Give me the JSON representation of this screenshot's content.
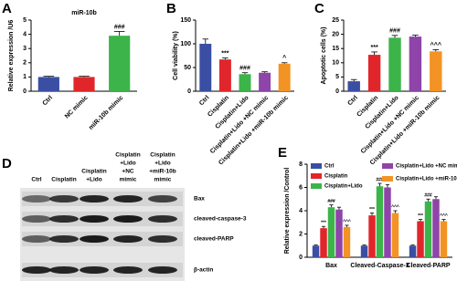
{
  "chart_data": [
    {
      "type": "bar",
      "panel": "A",
      "title": "miR-10b",
      "y_label": "Relative expression /U6",
      "categories": [
        "Ctrl",
        "NC mimic",
        "miR-10b mimic"
      ],
      "values": [
        1,
        1,
        3.9
      ],
      "errors": [
        0.05,
        0.05,
        0.3
      ],
      "colors": [
        "#3a4fa3",
        "#e0262b",
        "#3cb44a"
      ],
      "annotations": [
        null,
        null,
        "###"
      ],
      "ylim": [
        0,
        5
      ],
      "yticks": [
        0,
        1,
        2,
        3,
        4,
        5
      ]
    },
    {
      "type": "bar",
      "panel": "B",
      "y_label": "Cell viability (%)",
      "categories": [
        "Ctrl",
        "Cisplatin",
        "Cisplatin+Lido",
        "Cisplatin+Lido +NC mimic",
        "Cisplatin+Lido +miR-10b mimic"
      ],
      "values": [
        100,
        67,
        36,
        39,
        58
      ],
      "errors": [
        10,
        3,
        3,
        2,
        2
      ],
      "colors": [
        "#3a4fa3",
        "#e0262b",
        "#3cb44a",
        "#8e44a8",
        "#f39325"
      ],
      "annotations": [
        null,
        "***",
        "###",
        null,
        "^"
      ],
      "ylim": [
        0,
        150
      ],
      "yticks": [
        0,
        50,
        100,
        150
      ]
    },
    {
      "type": "bar",
      "panel": "C",
      "y_label": "Apoptotic cells (%)",
      "categories": [
        "Ctrl",
        "Cisplatin",
        "Cisplatin+Lido",
        "Cisplatin+Lido +NC mimic",
        "Cisplatin+Lido +miR-10b mimic"
      ],
      "values": [
        3.5,
        12.8,
        18.8,
        19.2,
        14
      ],
      "errors": [
        0.6,
        1,
        0.8,
        0.5,
        0.6
      ],
      "colors": [
        "#3a4fa3",
        "#e0262b",
        "#3cb44a",
        "#8e44a8",
        "#f39325"
      ],
      "annotations": [
        null,
        "***",
        "###",
        null,
        "^^^"
      ],
      "ylim": [
        0,
        25
      ],
      "yticks": [
        0,
        5,
        10,
        15,
        20,
        25
      ]
    },
    {
      "type": "grouped_bar",
      "panel": "E",
      "y_label": "Relative expression /Control",
      "categories": [
        "Bax",
        "Cleaved-Caspase-3",
        "Cleaved-PARP"
      ],
      "series": [
        {
          "name": "Ctrl",
          "color": "#3a4fa3",
          "values": [
            1,
            1,
            1
          ],
          "errors": [
            0.05,
            0.05,
            0.05
          ],
          "annotations": [
            null,
            null,
            null
          ]
        },
        {
          "name": "Cisplatin",
          "color": "#e0262b",
          "values": [
            2.5,
            3.6,
            3.1
          ],
          "errors": [
            0.15,
            0.2,
            0.15
          ],
          "annotations": [
            "***",
            "***",
            "***"
          ]
        },
        {
          "name": "Cisplatin+Lido",
          "color": "#3cb44a",
          "values": [
            4.3,
            6.1,
            4.8
          ],
          "errors": [
            0.2,
            0.25,
            0.2
          ],
          "annotations": [
            "###",
            "###",
            "###"
          ]
        },
        {
          "name": "Cisplatin+Lido +NC mimic",
          "color": "#8e44a8",
          "values": [
            4.1,
            6.0,
            5.0
          ],
          "errors": [
            0.2,
            0.25,
            0.2
          ],
          "annotations": [
            null,
            null,
            null
          ]
        },
        {
          "name": "Cisplatin+Lido +miR-10b mimic",
          "color": "#f39325",
          "values": [
            2.6,
            3.8,
            3.1
          ],
          "errors": [
            0.15,
            0.2,
            0.15
          ],
          "annotations": [
            "^^^",
            "^^^",
            "^^^"
          ]
        }
      ],
      "ylim": [
        0,
        8
      ],
      "yticks": [
        0,
        2,
        4,
        6,
        8
      ]
    }
  ],
  "blot": {
    "panel": "D",
    "columns": [
      [
        "Ctrl"
      ],
      [
        "Cisplatin"
      ],
      [
        "Cisplatin",
        "+Lido"
      ],
      [
        "Cisplatin",
        "+Lido",
        "+NC",
        "mimic"
      ],
      [
        "Cisplatin",
        "+Lido",
        "+miR-10b",
        "mimic"
      ]
    ],
    "rows": [
      "Bax",
      "cleaved-caspase-3",
      "cleaved-PARP",
      "β-actin"
    ]
  }
}
